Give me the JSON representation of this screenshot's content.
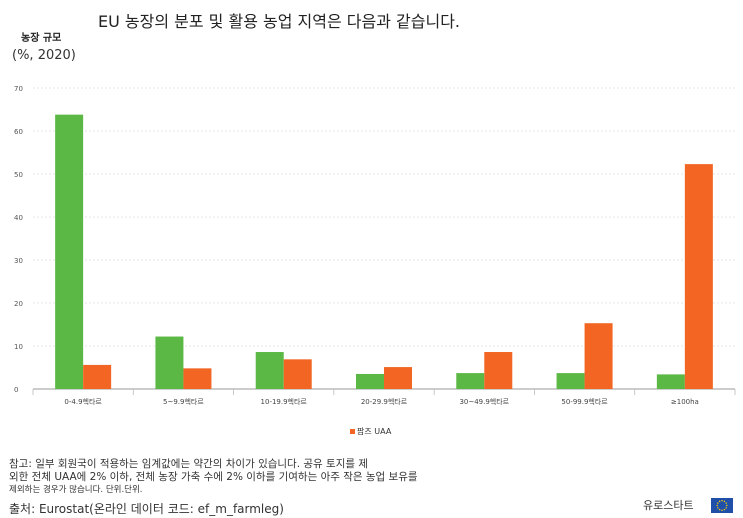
{
  "title": "EU 농장의 분포 및 활용 농업 지역은 다음과 같습니다.",
  "y_title_line1": "농장 규모",
  "y_title_line2": "(%, 2020)",
  "legend_label": "팜즈 UAA",
  "note_line1": "참고: 일부 회원국이 적용하는 임계값에는 약간의 차이가 있습니다. 공유 토지를 제",
  "note_line2": "외한 전체 UAA에 2% 이하, 전체 농장 가축 수에 2% 이하를 기여하는 아주 작은 농업 보유를",
  "note_line3": "제외하는 경우가 많습니다. 단위.단위.",
  "source": "출처: Eurostat(온라인 데이터 코드: ef_m_farmleg)",
  "brand": "유로스타트",
  "colors": {
    "farms": "#5cb845",
    "uaa": "#f26522",
    "flag_bg": "#1f4fa8",
    "flag_star": "#ffd500"
  },
  "chart_data": {
    "type": "bar",
    "categories": [
      "0-4.9헥타르",
      "5~9.9헥타르",
      "10-19.9헥타르",
      "20-29.9헥타르",
      "30~49.9헥타르",
      "50-99.9헥타르",
      "≥100ha"
    ],
    "series": [
      {
        "name": "",
        "color": "#5cb845",
        "values": [
          63.8,
          12.2,
          8.6,
          3.5,
          3.7,
          3.7,
          3.4
        ]
      },
      {
        "name": "팜즈 UAA",
        "color": "#f26522",
        "values": [
          5.6,
          4.8,
          6.9,
          5.1,
          8.6,
          15.3,
          52.3
        ]
      }
    ],
    "ylim": [
      0,
      70
    ],
    "yticks": [
      0,
      10,
      20,
      30,
      40,
      50,
      60,
      70
    ],
    "grid": true
  }
}
